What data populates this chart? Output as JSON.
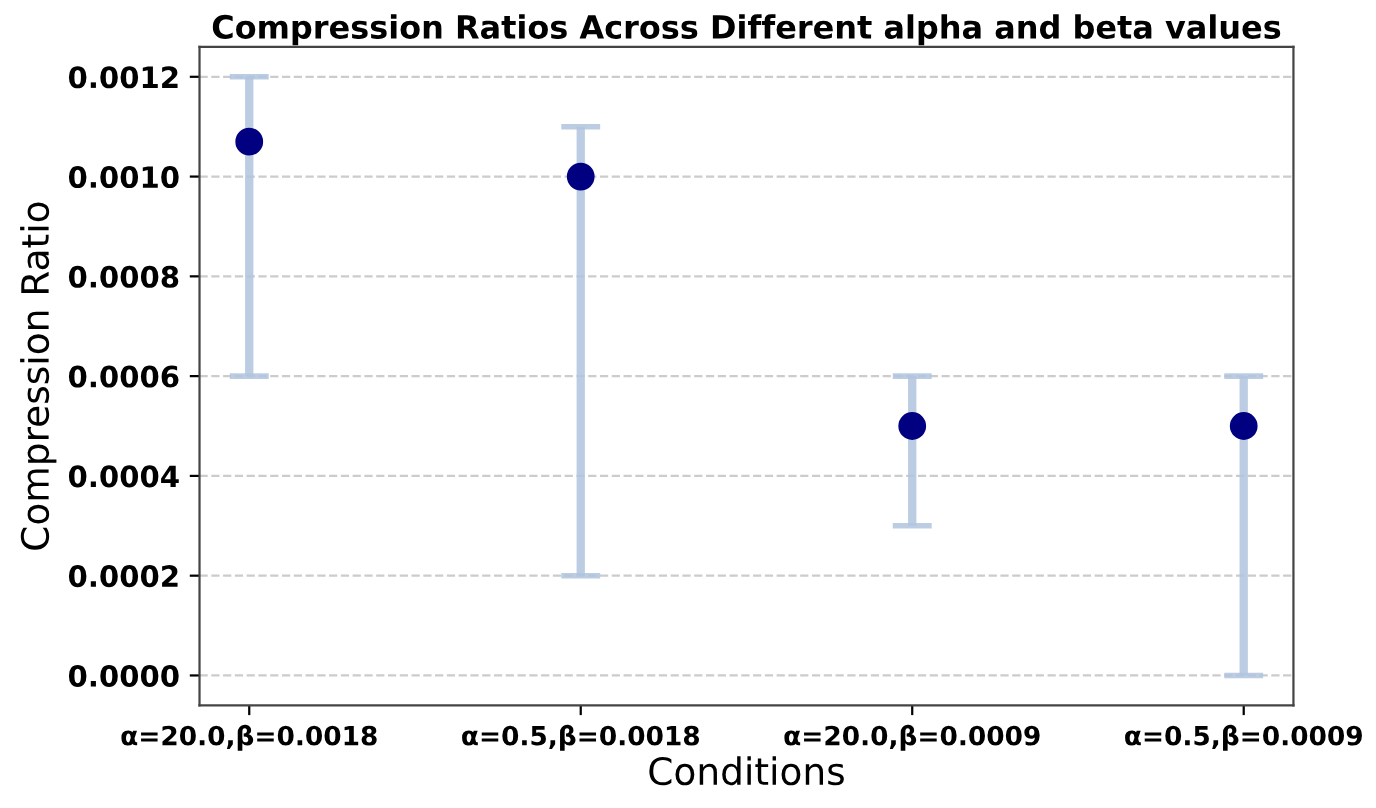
{
  "chart_data": {
    "type": "scatter",
    "title": "Compression Ratios Across Different alpha and beta values",
    "xlabel": "Conditions",
    "ylabel": "Compression Ratio",
    "categories": [
      "α=20.0,β=0.0018",
      "α=0.5,β=0.0018",
      "α=20.0,β=0.0009",
      "α=0.5,β=0.0009"
    ],
    "series": [
      {
        "color": "#000080",
        "values": [
          0.00107,
          0.001,
          0.0005,
          0.0005
        ],
        "errors": [
          [
            0.0006,
            0.0012
          ],
          [
            0.0002,
            0.0011
          ],
          [
            0.0003,
            0.0006
          ],
          [
            0.0,
            0.0006
          ]
        ]
      }
    ],
    "ylim": [
      -6e-05,
      0.00126
    ],
    "yticks": [
      {
        "value": 0,
        "label": "0.0000"
      },
      {
        "value": 0.0002,
        "label": "0.0002"
      },
      {
        "value": 0.0004,
        "label": "0.0004"
      },
      {
        "value": 0.0006,
        "label": "0.0006"
      },
      {
        "value": 0.0008,
        "label": "0.0008"
      },
      {
        "value": 0.001,
        "label": "0.0010"
      },
      {
        "value": 0.0012,
        "label": "0.0012"
      }
    ],
    "grid": "y",
    "marker": "circle"
  }
}
